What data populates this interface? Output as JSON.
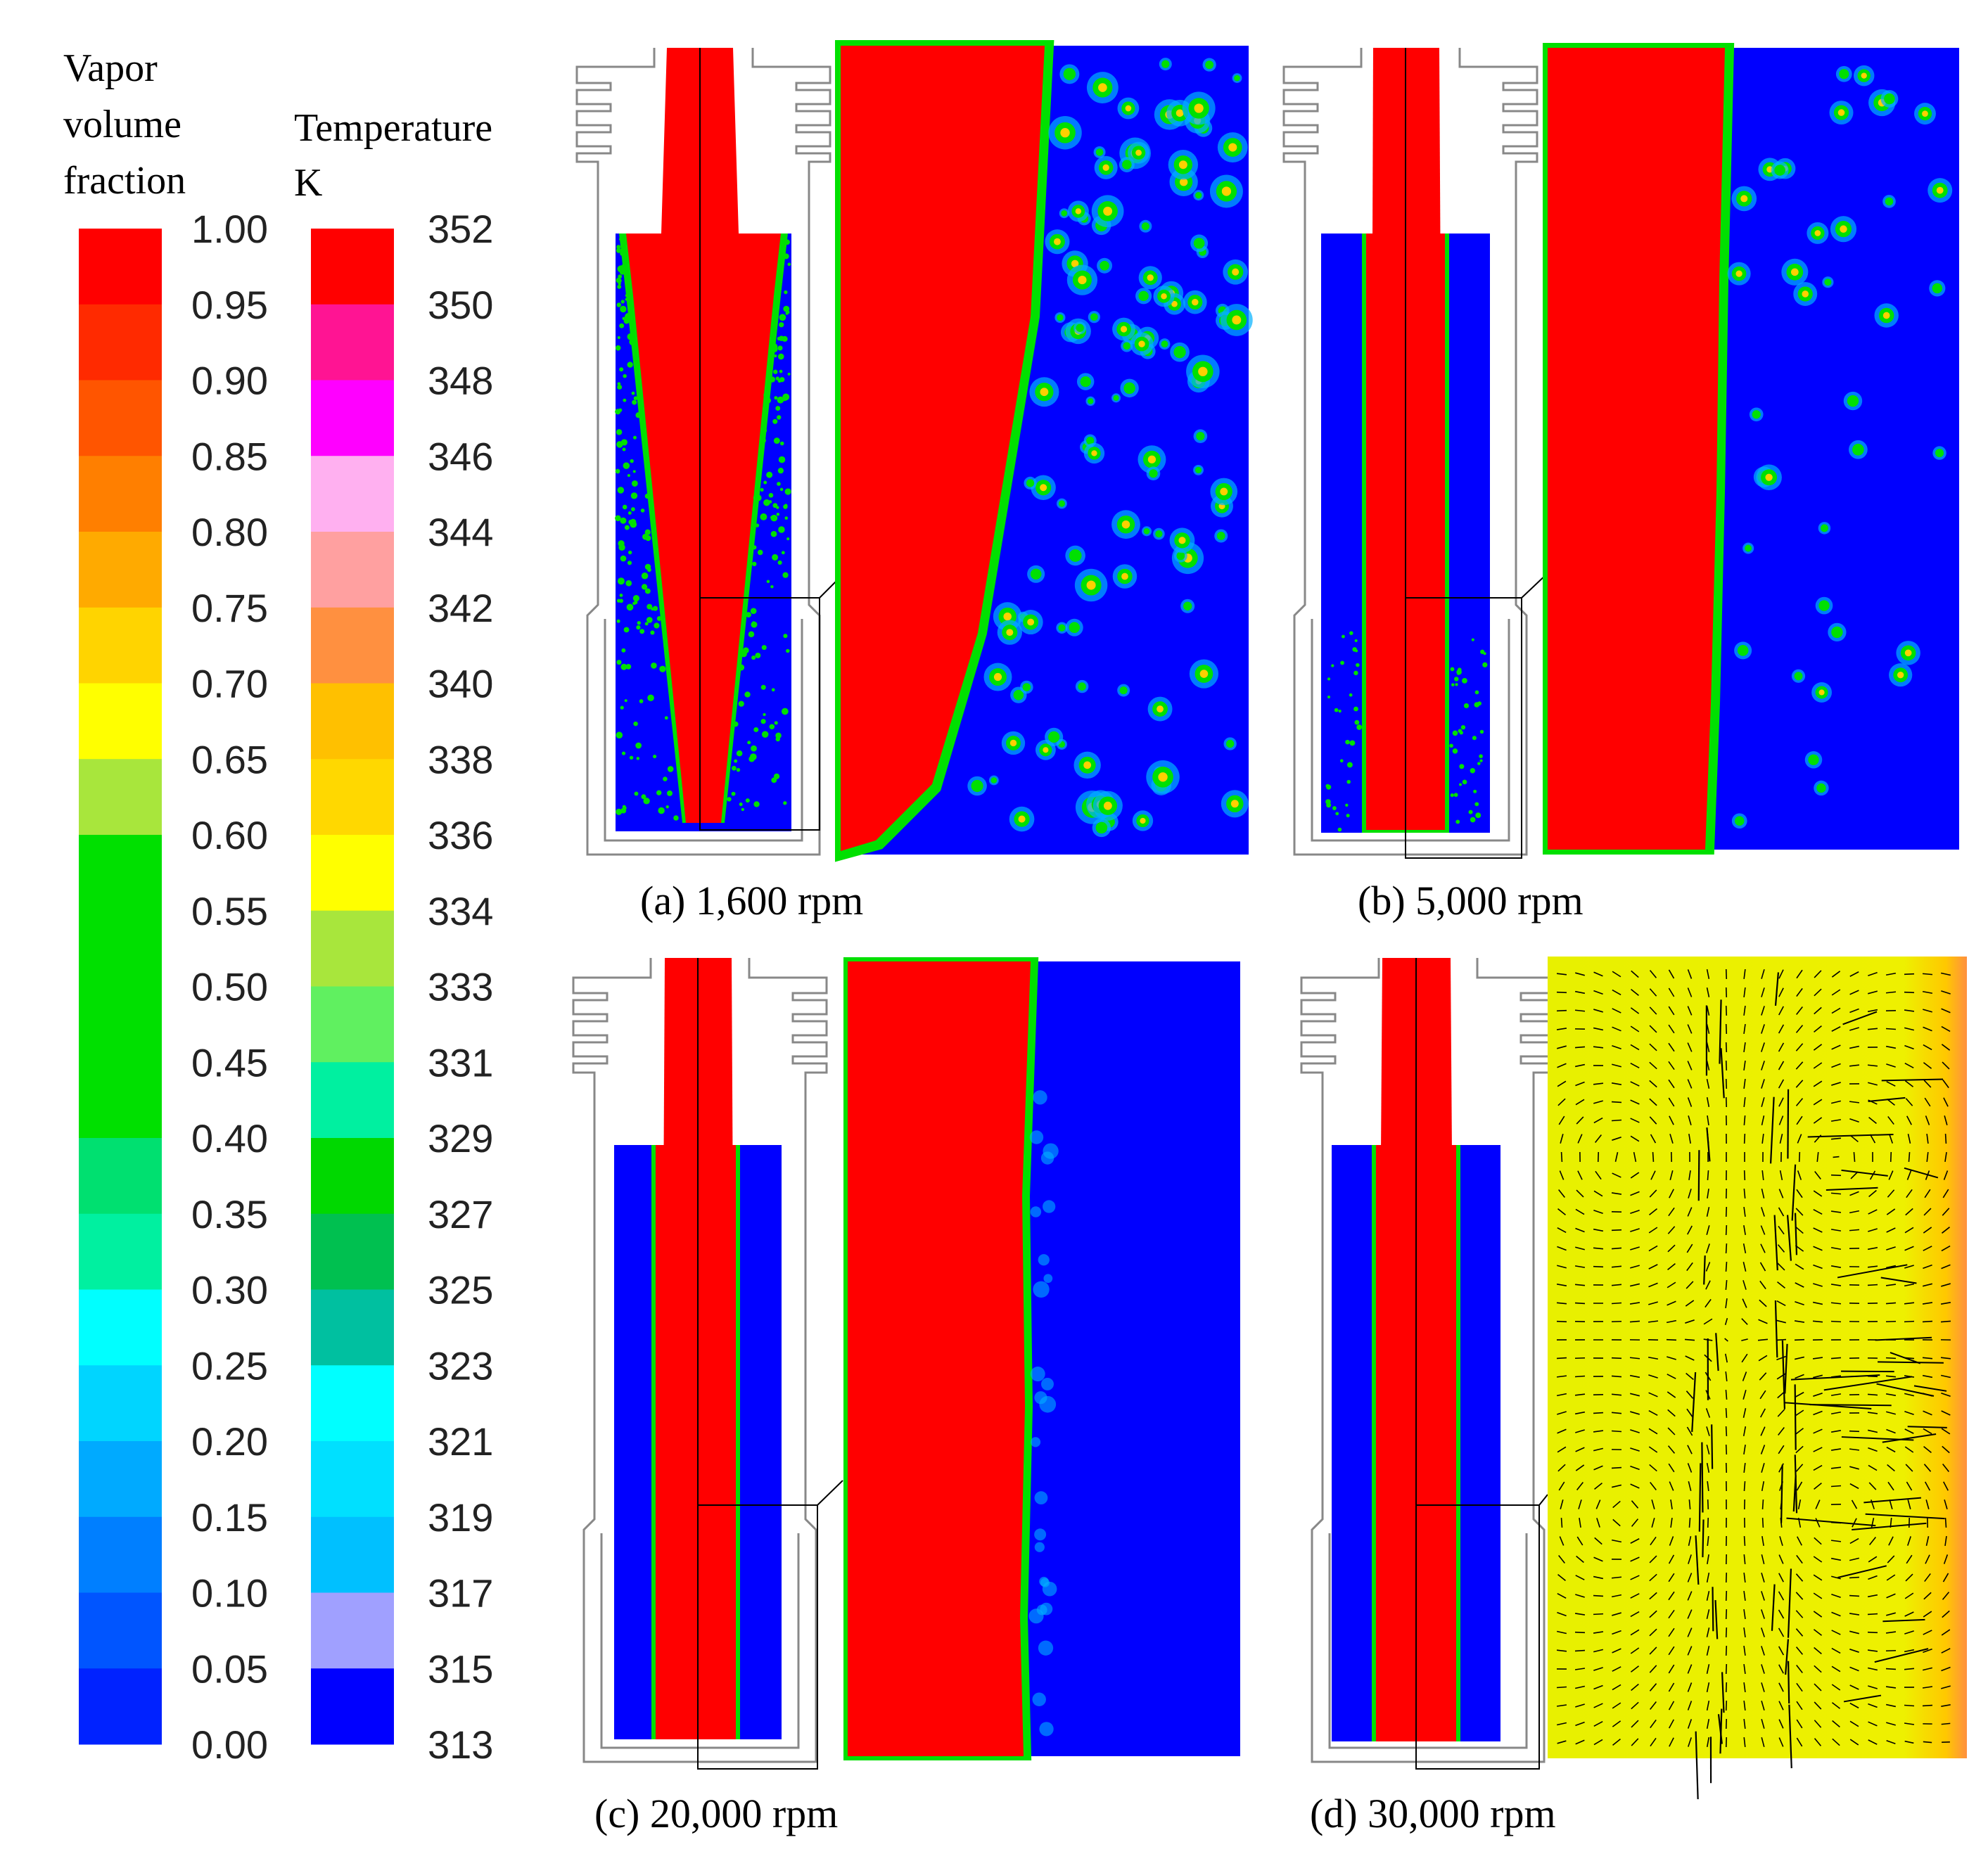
{
  "vapor_legend": {
    "title_lines": [
      "Vapor",
      "volume",
      "fraction"
    ],
    "labels": [
      "1.00",
      "0.95",
      "0.90",
      "0.85",
      "0.80",
      "0.75",
      "0.70",
      "0.65",
      "0.60",
      "0.55",
      "0.50",
      "0.45",
      "0.40",
      "0.35",
      "0.30",
      "0.25",
      "0.20",
      "0.15",
      "0.10",
      "0.05",
      "0.00"
    ],
    "colors": [
      "#ff0000",
      "#ff2a00",
      "#ff5500",
      "#ff7f00",
      "#ffaa00",
      "#ffd400",
      "#ffff00",
      "#a8e63c",
      "#00e000",
      "#00e000",
      "#00e000",
      "#00e000",
      "#00e070",
      "#00f0a0",
      "#00ffff",
      "#00d5ff",
      "#00aaff",
      "#007fff",
      "#0055ff",
      "#0022ff"
    ]
  },
  "temp_legend": {
    "title_lines": [
      "Temperature",
      "K"
    ],
    "labels": [
      "352",
      "350",
      "348",
      "346",
      "344",
      "342",
      "340",
      "338",
      "336",
      "334",
      "333",
      "331",
      "329",
      "327",
      "325",
      "323",
      "321",
      "319",
      "317",
      "315",
      "313"
    ],
    "colors": [
      "#ff0000",
      "#ff1493",
      "#ff00ff",
      "#ffb0f0",
      "#ffa0a0",
      "#ff9040",
      "#ffc000",
      "#ffd800",
      "#ffff00",
      "#a8e63c",
      "#60f060",
      "#00f0a0",
      "#00d800",
      "#00c050",
      "#00c0a0",
      "#00ffff",
      "#00e0ff",
      "#00c0ff",
      "#a0a0ff",
      "#0000ff"
    ]
  },
  "panels": [
    {
      "id": "a",
      "caption": "(a) 1,600 rpm"
    },
    {
      "id": "b",
      "caption": "(b) 5,000 rpm"
    },
    {
      "id": "c",
      "caption": "(c) 20,000 rpm"
    },
    {
      "id": "d",
      "caption": "(d) 30,000 rpm"
    }
  ],
  "colors": {
    "vapor": "#ff0000",
    "liquid": "#0000ff",
    "interface": "#00e000",
    "outline": "#888888",
    "temp_field": "#e8f000"
  }
}
